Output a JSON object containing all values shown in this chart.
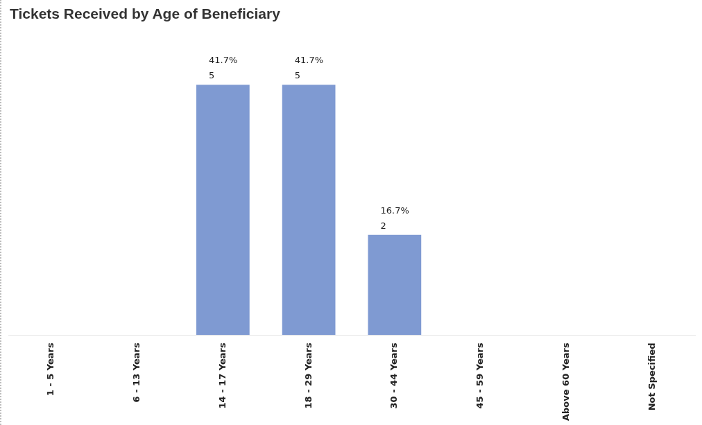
{
  "chart_data": {
    "type": "bar",
    "title": "Tickets Received by Age of Beneficiary",
    "categories": [
      "1 - 5 Years",
      "6 - 13 Years",
      "14 - 17 Years",
      "18 - 29 Years",
      "30 - 44 Years",
      "45 - 59 Years",
      "Above 60 Years",
      "Not Specified"
    ],
    "values": [
      null,
      null,
      5,
      5,
      2,
      null,
      null,
      null
    ],
    "value_labels": [
      null,
      null,
      "41.7%\n5",
      "41.7%\n5",
      "16.7%\n2",
      null,
      null,
      null
    ],
    "color": "#7f9ad2",
    "tick_labels": "x"
  }
}
